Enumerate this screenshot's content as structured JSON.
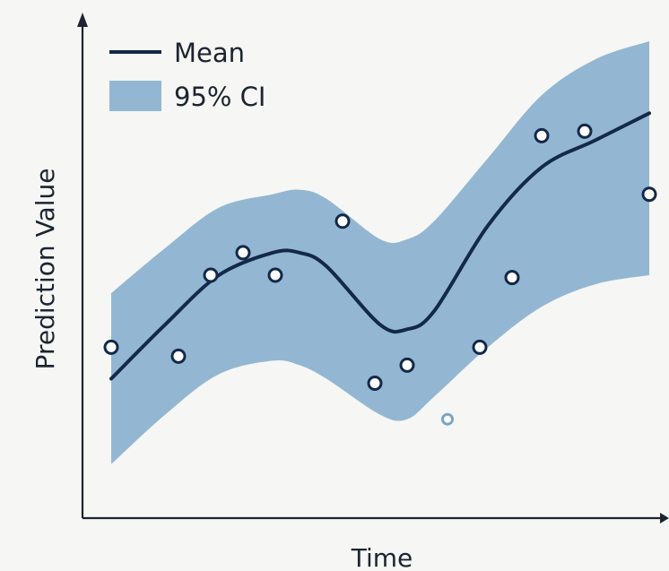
{
  "colors": {
    "background": "#f6f6f4",
    "axis": "#1c2430",
    "mean": "#13284a",
    "ci": "#93b7d2",
    "point_stroke": "#13284a",
    "faded_point_stroke": "#7aa6c6"
  },
  "chart_data": {
    "type": "line",
    "title": "",
    "xlabel": "Time",
    "ylabel": "Prediction Value",
    "x_ticks": "none",
    "y_ticks": "none",
    "grid": false,
    "legend_position": "top-left",
    "legend": [
      {
        "label": "Mean",
        "kind": "line"
      },
      {
        "label": "95% CI",
        "kind": "band"
      }
    ],
    "xlim": [
      0,
      10
    ],
    "ylim": [
      0,
      10
    ],
    "series": [
      {
        "name": "Mean",
        "x": [
          0.0,
          1.0,
          2.0,
          3.0,
          3.5,
          4.0,
          5.0,
          5.5,
          6.0,
          7.0,
          8.0,
          9.0,
          10.0
        ],
        "y": [
          2.5,
          3.7,
          4.8,
          5.3,
          5.3,
          5.0,
          3.7,
          3.6,
          4.0,
          5.9,
          7.2,
          7.8,
          8.4
        ]
      },
      {
        "name": "95% CI",
        "x": [
          0.0,
          1.0,
          2.0,
          3.0,
          3.5,
          4.0,
          5.0,
          5.5,
          6.0,
          7.0,
          8.0,
          9.0,
          10.0
        ],
        "lower": [
          0.6,
          1.7,
          2.6,
          2.9,
          2.8,
          2.5,
          1.7,
          1.6,
          2.1,
          3.2,
          4.1,
          4.6,
          4.8
        ],
        "upper": [
          4.4,
          5.4,
          6.3,
          6.6,
          6.7,
          6.5,
          5.6,
          5.6,
          6.0,
          7.4,
          8.8,
          9.6,
          10.0
        ]
      }
    ],
    "points": [
      {
        "x": 0.0,
        "y": 3.2
      },
      {
        "x": 1.25,
        "y": 3.0
      },
      {
        "x": 1.85,
        "y": 4.8
      },
      {
        "x": 2.45,
        "y": 5.3
      },
      {
        "x": 3.05,
        "y": 4.8
      },
      {
        "x": 4.3,
        "y": 6.0
      },
      {
        "x": 4.9,
        "y": 2.4
      },
      {
        "x": 5.5,
        "y": 2.8
      },
      {
        "x": 6.25,
        "y": 1.6,
        "faded": true
      },
      {
        "x": 6.85,
        "y": 3.2
      },
      {
        "x": 7.45,
        "y": 4.75
      },
      {
        "x": 8.0,
        "y": 7.9
      },
      {
        "x": 8.8,
        "y": 8.0
      },
      {
        "x": 10.0,
        "y": 6.6
      }
    ]
  }
}
